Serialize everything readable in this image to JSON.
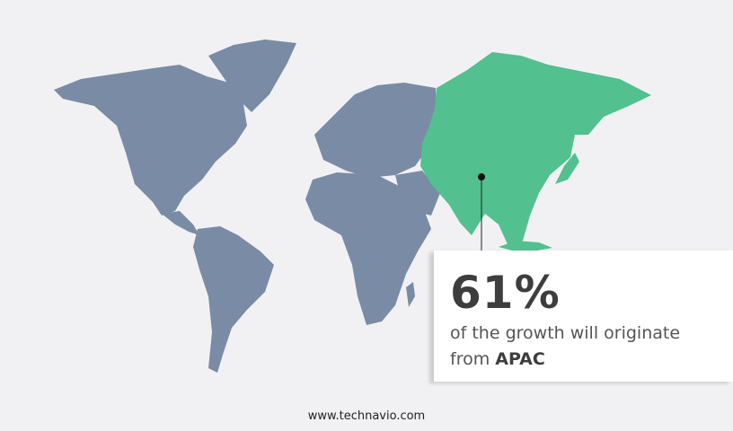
{
  "colors": {
    "map_default": "#7a8ba5",
    "highlight": "#52c08f",
    "background": "#f1f1f3"
  },
  "highlight_region": "APAC",
  "callout": {
    "percent": "61%",
    "text": "of the growth will originate",
    "text2": "from",
    "region": "APAC"
  },
  "footer": "www.technavio.com"
}
